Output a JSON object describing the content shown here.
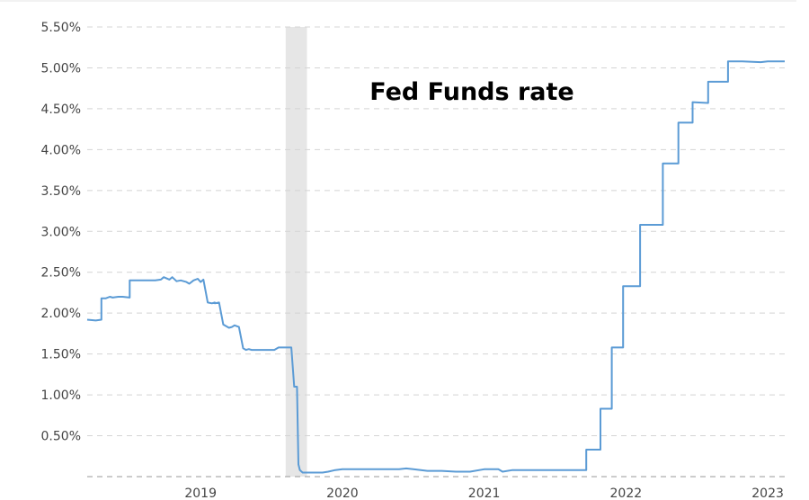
{
  "chart_data": {
    "type": "line",
    "title": "Fed Funds rate",
    "xlabel": "",
    "ylabel": "",
    "ylim": [
      0,
      5.5
    ],
    "xlim": [
      2018.2,
      2023.12
    ],
    "y_ticks": [
      0.5,
      1.0,
      1.5,
      2.0,
      2.5,
      3.0,
      3.5,
      4.0,
      4.5,
      5.0,
      5.5
    ],
    "y_tick_labels": [
      "0.50%",
      "1.00%",
      "1.50%",
      "2.00%",
      "2.50%",
      "3.00%",
      "3.50%",
      "4.00%",
      "4.50%",
      "5.00%",
      "5.50%"
    ],
    "x_ticks": [
      2019,
      2020,
      2021,
      2022,
      2023
    ],
    "x_tick_labels": [
      "2019",
      "2020",
      "2021",
      "2022",
      "2023"
    ],
    "grid": true,
    "legend": "none",
    "colors": {
      "series": "#5b9bd5",
      "shading": "#e6e6e6"
    },
    "shaded_regions": [
      {
        "x0": 2019.6,
        "x1": 2019.75
      }
    ],
    "series": [
      {
        "x": [
          2018.2,
          2018.26,
          2018.3,
          2018.3,
          2018.33,
          2018.36,
          2018.38,
          2018.42,
          2018.45,
          2018.5,
          2018.5,
          2018.52,
          2018.6,
          2018.64,
          2018.68,
          2018.72,
          2018.74,
          2018.78,
          2018.8,
          2018.83,
          2018.86,
          2018.9,
          2018.92,
          2018.95,
          2018.98,
          2019.0,
          2019.02,
          2019.05,
          2019.08,
          2019.1,
          2019.1,
          2019.13,
          2019.16,
          2019.2,
          2019.2,
          2019.22,
          2019.24,
          2019.27,
          2019.3,
          2019.32,
          2019.34,
          2019.36,
          2019.4,
          2019.44,
          2019.48,
          2019.52,
          2019.55,
          2019.56,
          2019.56,
          2019.63,
          2019.64,
          2019.66,
          2019.67,
          2019.68,
          2019.69,
          2019.7,
          2019.72,
          2019.75,
          2019.8,
          2019.83,
          2019.86,
          2019.9,
          2019.95,
          2020.0,
          2020.05,
          2020.1,
          2020.2,
          2020.3,
          2020.4,
          2020.45,
          2020.5,
          2020.6,
          2020.7,
          2020.8,
          2020.9,
          2021.0,
          2021.05,
          2021.1,
          2021.13,
          2021.2,
          2021.3,
          2021.4,
          2021.5,
          2021.6,
          2021.7,
          2021.72,
          2021.72,
          2021.82,
          2021.82,
          2021.9,
          2021.9,
          2021.98,
          2021.98,
          2022.1,
          2022.1,
          2022.26,
          2022.26,
          2022.37,
          2022.37,
          2022.47,
          2022.47,
          2022.58,
          2022.58,
          2022.72,
          2022.72,
          2022.82,
          2022.82,
          2022.95,
          2023.0,
          2023.12
        ],
        "y": [
          1.92,
          1.91,
          1.92,
          2.18,
          2.18,
          2.2,
          2.19,
          2.2,
          2.2,
          2.19,
          2.4,
          2.4,
          2.4,
          2.4,
          2.4,
          2.41,
          2.44,
          2.41,
          2.44,
          2.39,
          2.4,
          2.38,
          2.36,
          2.4,
          2.42,
          2.38,
          2.41,
          2.13,
          2.12,
          2.13,
          2.12,
          2.13,
          1.86,
          1.82,
          1.82,
          1.83,
          1.85,
          1.83,
          1.57,
          1.55,
          1.56,
          1.55,
          1.55,
          1.55,
          1.55,
          1.55,
          1.58,
          1.58,
          1.58,
          1.58,
          1.58,
          1.1,
          1.1,
          1.1,
          0.15,
          0.08,
          0.05,
          0.05,
          0.05,
          0.05,
          0.05,
          0.06,
          0.08,
          0.09,
          0.09,
          0.09,
          0.09,
          0.09,
          0.09,
          0.1,
          0.09,
          0.07,
          0.07,
          0.06,
          0.06,
          0.09,
          0.09,
          0.09,
          0.06,
          0.08,
          0.08,
          0.08,
          0.08,
          0.08,
          0.08,
          0.08,
          0.33,
          0.33,
          0.83,
          0.83,
          1.58,
          1.58,
          2.33,
          2.33,
          3.08,
          3.08,
          3.83,
          3.83,
          4.33,
          4.33,
          4.58,
          4.57,
          4.83,
          4.83,
          5.08,
          5.08,
          5.08,
          5.07,
          5.08,
          5.08
        ]
      }
    ]
  }
}
